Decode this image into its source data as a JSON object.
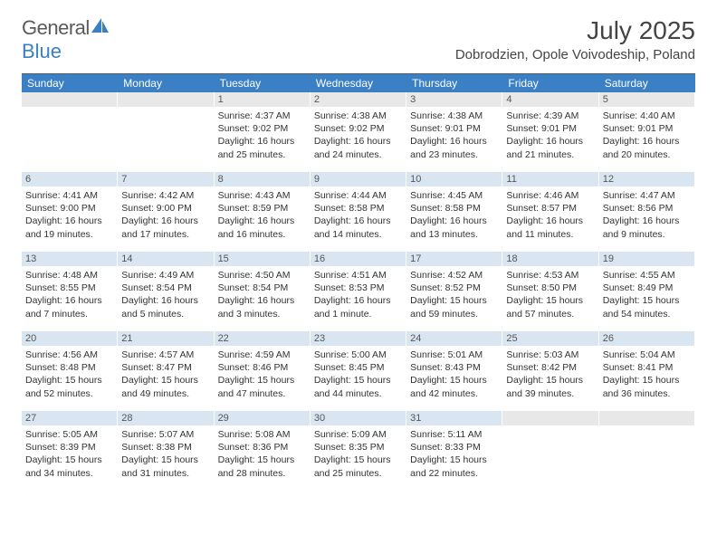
{
  "brand": {
    "text_gray": "General",
    "text_blue": "Blue"
  },
  "title": "July 2025",
  "location": "Dobrodzien, Opole Voivodeship, Poland",
  "colors": {
    "header_bg": "#3b7fc4",
    "header_text": "#ffffff",
    "daynum_bg": "#e8e8e8",
    "daynum_bg_hl": "#d9e6f2",
    "text": "#333333",
    "brand_gray": "#5a5a5a",
    "brand_blue": "#3b7fc4"
  },
  "day_headers": [
    "Sunday",
    "Monday",
    "Tuesday",
    "Wednesday",
    "Thursday",
    "Friday",
    "Saturday"
  ],
  "weeks": [
    [
      {
        "n": "",
        "hl": false,
        "sunrise": "",
        "sunset": "",
        "day1": "",
        "day2": ""
      },
      {
        "n": "",
        "hl": false,
        "sunrise": "",
        "sunset": "",
        "day1": "",
        "day2": ""
      },
      {
        "n": "1",
        "hl": false,
        "sunrise": "Sunrise: 4:37 AM",
        "sunset": "Sunset: 9:02 PM",
        "day1": "Daylight: 16 hours",
        "day2": "and 25 minutes."
      },
      {
        "n": "2",
        "hl": false,
        "sunrise": "Sunrise: 4:38 AM",
        "sunset": "Sunset: 9:02 PM",
        "day1": "Daylight: 16 hours",
        "day2": "and 24 minutes."
      },
      {
        "n": "3",
        "hl": false,
        "sunrise": "Sunrise: 4:38 AM",
        "sunset": "Sunset: 9:01 PM",
        "day1": "Daylight: 16 hours",
        "day2": "and 23 minutes."
      },
      {
        "n": "4",
        "hl": false,
        "sunrise": "Sunrise: 4:39 AM",
        "sunset": "Sunset: 9:01 PM",
        "day1": "Daylight: 16 hours",
        "day2": "and 21 minutes."
      },
      {
        "n": "5",
        "hl": false,
        "sunrise": "Sunrise: 4:40 AM",
        "sunset": "Sunset: 9:01 PM",
        "day1": "Daylight: 16 hours",
        "day2": "and 20 minutes."
      }
    ],
    [
      {
        "n": "6",
        "hl": true,
        "sunrise": "Sunrise: 4:41 AM",
        "sunset": "Sunset: 9:00 PM",
        "day1": "Daylight: 16 hours",
        "day2": "and 19 minutes."
      },
      {
        "n": "7",
        "hl": true,
        "sunrise": "Sunrise: 4:42 AM",
        "sunset": "Sunset: 9:00 PM",
        "day1": "Daylight: 16 hours",
        "day2": "and 17 minutes."
      },
      {
        "n": "8",
        "hl": true,
        "sunrise": "Sunrise: 4:43 AM",
        "sunset": "Sunset: 8:59 PM",
        "day1": "Daylight: 16 hours",
        "day2": "and 16 minutes."
      },
      {
        "n": "9",
        "hl": true,
        "sunrise": "Sunrise: 4:44 AM",
        "sunset": "Sunset: 8:58 PM",
        "day1": "Daylight: 16 hours",
        "day2": "and 14 minutes."
      },
      {
        "n": "10",
        "hl": true,
        "sunrise": "Sunrise: 4:45 AM",
        "sunset": "Sunset: 8:58 PM",
        "day1": "Daylight: 16 hours",
        "day2": "and 13 minutes."
      },
      {
        "n": "11",
        "hl": true,
        "sunrise": "Sunrise: 4:46 AM",
        "sunset": "Sunset: 8:57 PM",
        "day1": "Daylight: 16 hours",
        "day2": "and 11 minutes."
      },
      {
        "n": "12",
        "hl": true,
        "sunrise": "Sunrise: 4:47 AM",
        "sunset": "Sunset: 8:56 PM",
        "day1": "Daylight: 16 hours",
        "day2": "and 9 minutes."
      }
    ],
    [
      {
        "n": "13",
        "hl": true,
        "sunrise": "Sunrise: 4:48 AM",
        "sunset": "Sunset: 8:55 PM",
        "day1": "Daylight: 16 hours",
        "day2": "and 7 minutes."
      },
      {
        "n": "14",
        "hl": true,
        "sunrise": "Sunrise: 4:49 AM",
        "sunset": "Sunset: 8:54 PM",
        "day1": "Daylight: 16 hours",
        "day2": "and 5 minutes."
      },
      {
        "n": "15",
        "hl": true,
        "sunrise": "Sunrise: 4:50 AM",
        "sunset": "Sunset: 8:54 PM",
        "day1": "Daylight: 16 hours",
        "day2": "and 3 minutes."
      },
      {
        "n": "16",
        "hl": true,
        "sunrise": "Sunrise: 4:51 AM",
        "sunset": "Sunset: 8:53 PM",
        "day1": "Daylight: 16 hours",
        "day2": "and 1 minute."
      },
      {
        "n": "17",
        "hl": true,
        "sunrise": "Sunrise: 4:52 AM",
        "sunset": "Sunset: 8:52 PM",
        "day1": "Daylight: 15 hours",
        "day2": "and 59 minutes."
      },
      {
        "n": "18",
        "hl": true,
        "sunrise": "Sunrise: 4:53 AM",
        "sunset": "Sunset: 8:50 PM",
        "day1": "Daylight: 15 hours",
        "day2": "and 57 minutes."
      },
      {
        "n": "19",
        "hl": true,
        "sunrise": "Sunrise: 4:55 AM",
        "sunset": "Sunset: 8:49 PM",
        "day1": "Daylight: 15 hours",
        "day2": "and 54 minutes."
      }
    ],
    [
      {
        "n": "20",
        "hl": true,
        "sunrise": "Sunrise: 4:56 AM",
        "sunset": "Sunset: 8:48 PM",
        "day1": "Daylight: 15 hours",
        "day2": "and 52 minutes."
      },
      {
        "n": "21",
        "hl": true,
        "sunrise": "Sunrise: 4:57 AM",
        "sunset": "Sunset: 8:47 PM",
        "day1": "Daylight: 15 hours",
        "day2": "and 49 minutes."
      },
      {
        "n": "22",
        "hl": true,
        "sunrise": "Sunrise: 4:59 AM",
        "sunset": "Sunset: 8:46 PM",
        "day1": "Daylight: 15 hours",
        "day2": "and 47 minutes."
      },
      {
        "n": "23",
        "hl": true,
        "sunrise": "Sunrise: 5:00 AM",
        "sunset": "Sunset: 8:45 PM",
        "day1": "Daylight: 15 hours",
        "day2": "and 44 minutes."
      },
      {
        "n": "24",
        "hl": true,
        "sunrise": "Sunrise: 5:01 AM",
        "sunset": "Sunset: 8:43 PM",
        "day1": "Daylight: 15 hours",
        "day2": "and 42 minutes."
      },
      {
        "n": "25",
        "hl": true,
        "sunrise": "Sunrise: 5:03 AM",
        "sunset": "Sunset: 8:42 PM",
        "day1": "Daylight: 15 hours",
        "day2": "and 39 minutes."
      },
      {
        "n": "26",
        "hl": true,
        "sunrise": "Sunrise: 5:04 AM",
        "sunset": "Sunset: 8:41 PM",
        "day1": "Daylight: 15 hours",
        "day2": "and 36 minutes."
      }
    ],
    [
      {
        "n": "27",
        "hl": true,
        "sunrise": "Sunrise: 5:05 AM",
        "sunset": "Sunset: 8:39 PM",
        "day1": "Daylight: 15 hours",
        "day2": "and 34 minutes."
      },
      {
        "n": "28",
        "hl": true,
        "sunrise": "Sunrise: 5:07 AM",
        "sunset": "Sunset: 8:38 PM",
        "day1": "Daylight: 15 hours",
        "day2": "and 31 minutes."
      },
      {
        "n": "29",
        "hl": true,
        "sunrise": "Sunrise: 5:08 AM",
        "sunset": "Sunset: 8:36 PM",
        "day1": "Daylight: 15 hours",
        "day2": "and 28 minutes."
      },
      {
        "n": "30",
        "hl": true,
        "sunrise": "Sunrise: 5:09 AM",
        "sunset": "Sunset: 8:35 PM",
        "day1": "Daylight: 15 hours",
        "day2": "and 25 minutes."
      },
      {
        "n": "31",
        "hl": true,
        "sunrise": "Sunrise: 5:11 AM",
        "sunset": "Sunset: 8:33 PM",
        "day1": "Daylight: 15 hours",
        "day2": "and 22 minutes."
      },
      {
        "n": "",
        "hl": false,
        "sunrise": "",
        "sunset": "",
        "day1": "",
        "day2": ""
      },
      {
        "n": "",
        "hl": false,
        "sunrise": "",
        "sunset": "",
        "day1": "",
        "day2": ""
      }
    ]
  ]
}
